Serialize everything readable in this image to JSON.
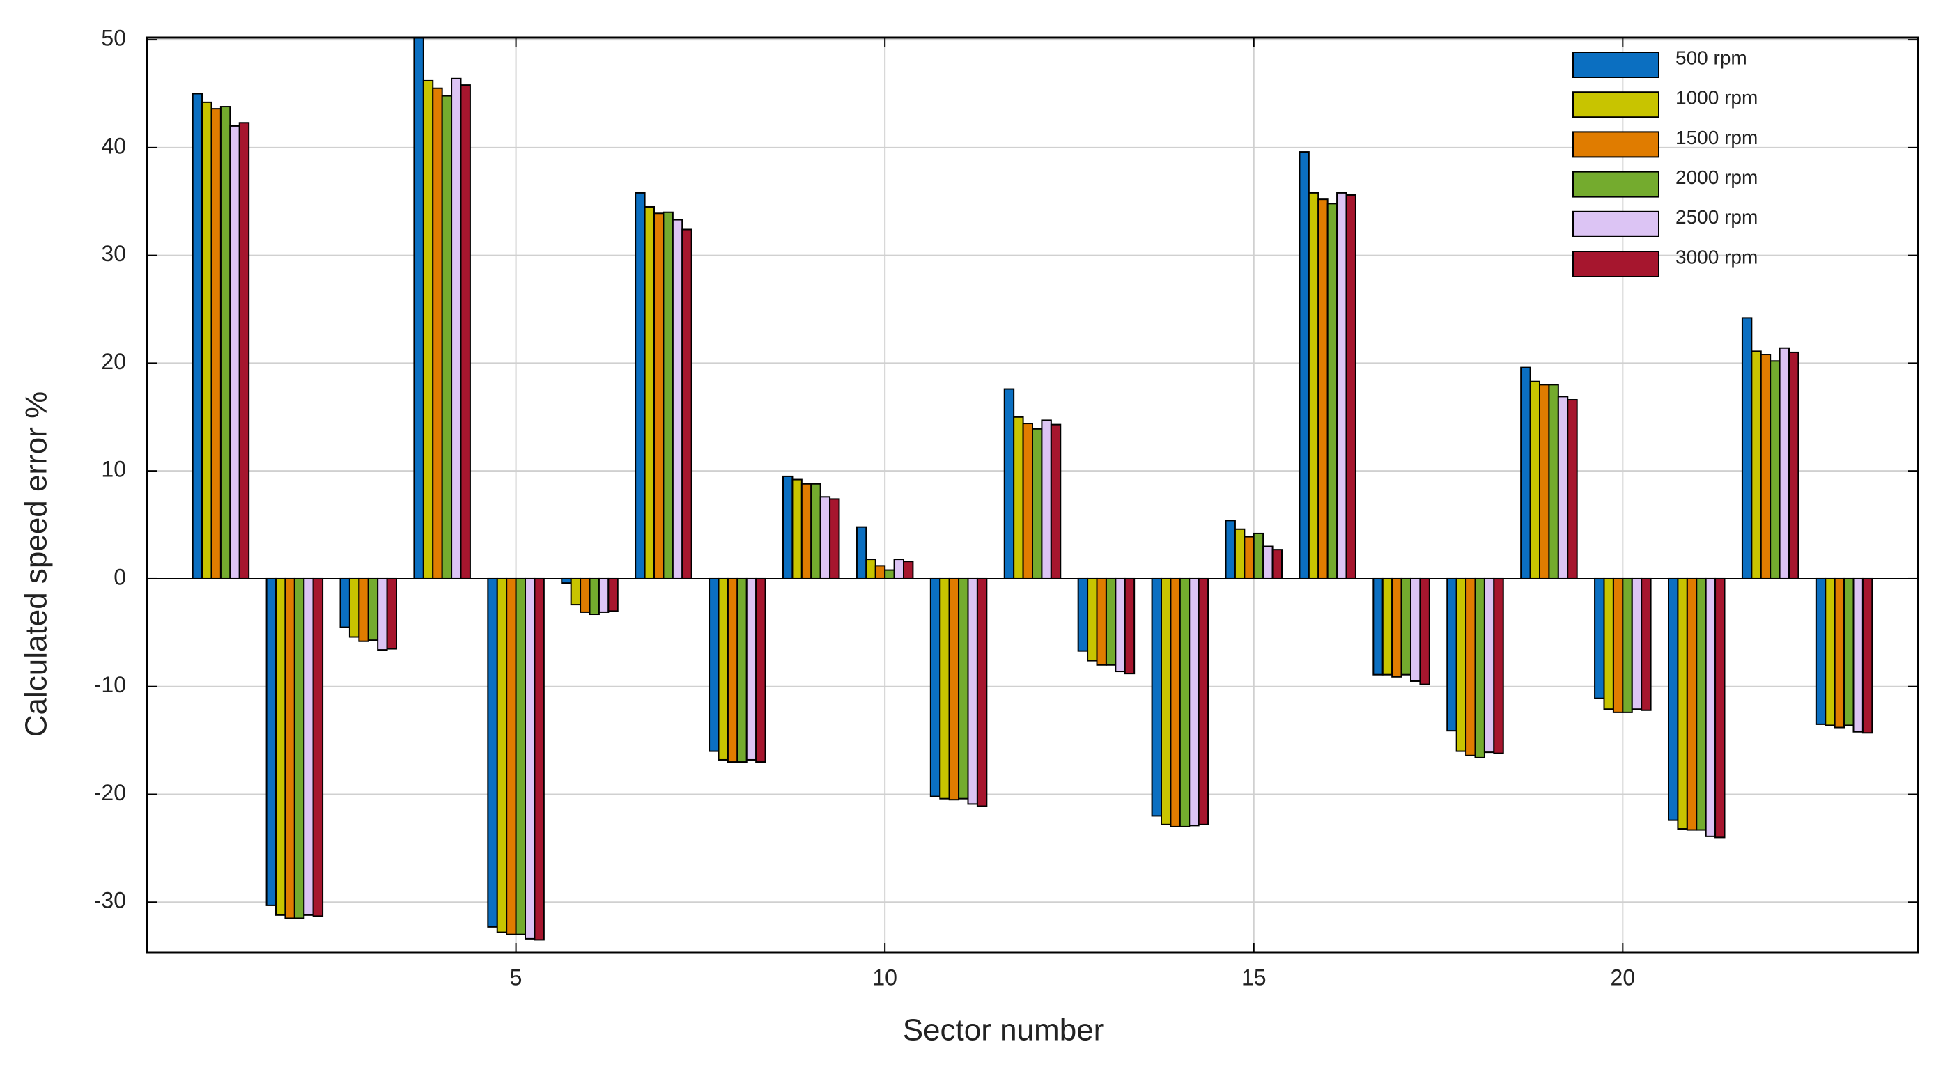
{
  "chart_data": {
    "type": "bar",
    "x_label": "Sector number",
    "y_label": "Calculated speed error  %",
    "x": [
      1,
      2,
      3,
      4,
      5,
      6,
      7,
      8,
      9,
      10,
      11,
      12,
      13,
      14,
      15,
      16,
      17,
      18,
      19,
      20,
      21,
      22,
      23
    ],
    "xlim": [
      0,
      24
    ],
    "xticks": [
      5,
      10,
      15,
      20
    ],
    "ylim": [
      -34.7,
      50.2
    ],
    "yticks": [
      -30,
      -20,
      -10,
      0,
      10,
      20,
      30,
      40,
      50
    ],
    "grid": true,
    "legend": "upper right",
    "series": [
      {
        "name": "500 rpm",
        "color": "#0b6fc1",
        "values": [
          45,
          -30.3,
          -4.5,
          50.2,
          -32.3,
          -0.4,
          35.8,
          -16,
          9.5,
          4.8,
          -20.2,
          17.6,
          -6.7,
          -22,
          5.4,
          39.6,
          -8.9,
          -14.1,
          19.6,
          -11.1,
          -22.4,
          24.2,
          -13.5
        ]
      },
      {
        "name": "1000 rpm",
        "color": "#c8c400",
        "values": [
          44.2,
          -31.2,
          -5.4,
          46.2,
          -32.8,
          -2.4,
          34.5,
          -16.8,
          9.2,
          1.8,
          -20.4,
          15,
          -7.6,
          -22.8,
          4.6,
          35.8,
          -8.9,
          -16,
          18.3,
          -12.1,
          -23.2,
          21.1,
          -13.6
        ]
      },
      {
        "name": "1500 rpm",
        "color": "#e07c00",
        "values": [
          43.6,
          -31.5,
          -5.8,
          45.5,
          -33,
          -3.1,
          33.9,
          -17,
          8.8,
          1.2,
          -20.5,
          14.4,
          -8,
          -23,
          3.9,
          35.2,
          -9.1,
          -16.4,
          18,
          -12.4,
          -23.3,
          20.8,
          -13.8
        ]
      },
      {
        "name": "2000 rpm",
        "color": "#74ab2e",
        "values": [
          43.8,
          -31.5,
          -5.7,
          44.8,
          -33,
          -3.3,
          34,
          -17,
          8.8,
          0.8,
          -20.4,
          13.9,
          -8,
          -23,
          4.2,
          34.8,
          -8.9,
          -16.6,
          18,
          -12.4,
          -23.3,
          20.2,
          -13.6
        ]
      },
      {
        "name": "2500 rpm",
        "color": "#dcc4f4",
        "values": [
          42,
          -31.2,
          -6.6,
          46.4,
          -33.4,
          -3.1,
          33.3,
          -16.8,
          7.6,
          1.8,
          -20.9,
          14.7,
          -8.6,
          -22.9,
          3,
          35.8,
          -9.5,
          -16.1,
          16.9,
          -12.1,
          -23.9,
          21.4,
          -14.2
        ]
      },
      {
        "name": "3000 rpm",
        "color": "#a6162e",
        "values": [
          42.3,
          -31.3,
          -6.5,
          45.8,
          -33.5,
          -3,
          32.4,
          -17,
          7.4,
          1.6,
          -21.1,
          14.3,
          -8.8,
          -22.8,
          2.7,
          35.6,
          -9.8,
          -16.2,
          16.6,
          -12.2,
          -24,
          21,
          -14.3
        ]
      }
    ]
  }
}
